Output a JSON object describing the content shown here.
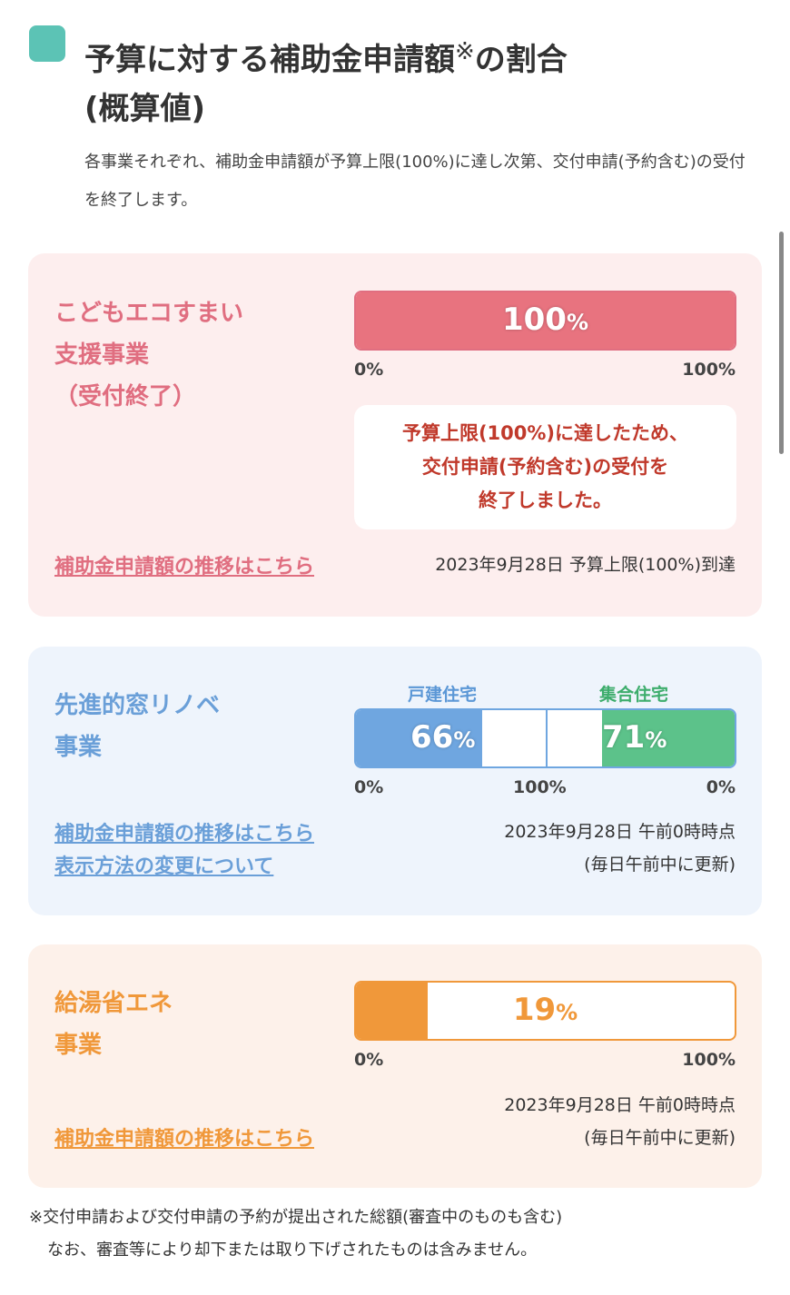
{
  "heading": {
    "title_line1": "予算に対する補助金申請額",
    "title_mark": "※",
    "title_line1_suffix": "の割合",
    "title_line2": "(概算値)",
    "intro": "各事業それぞれ、補助金申請額が予算上限(100%)に達し次第、交付申請(予約含む)の受付を終了します。"
  },
  "kodomo": {
    "name_line1": "こどもエコすまい",
    "name_line2": "支援事業",
    "name_line3": "（受付終了）",
    "progress_percent": 100,
    "bar_value": "100",
    "bar_unit": "%",
    "scale_min": "0%",
    "scale_max": "100%",
    "notice_line1": "予算上限(100%)に達したため、",
    "notice_line2": "交付申請(予約含む)の受付を",
    "notice_line3": "終了しました。",
    "link": "補助金申請額の推移はこちら",
    "status": "2023年9月28日 予算上限(100%)到達",
    "color": "#e8737f"
  },
  "mado": {
    "name_line1": "先進的窓リノベ",
    "name_line2": "事業",
    "left_label": "戸建住宅",
    "right_label": "集合住宅",
    "left_percent": 66,
    "right_percent": 71,
    "left_value": "66",
    "right_value": "71",
    "unit": "%",
    "scale_left": "0%",
    "scale_mid": "100%",
    "scale_right": "0%",
    "link1": "補助金申請額の推移はこちら",
    "link2": "表示方法の変更について",
    "status_line1": "2023年9月28日 午前0時時点",
    "status_line2": "(毎日午前中に更新)",
    "left_color": "#6fa6e0",
    "right_color": "#5cc28a",
    "label_left_color": "#5b97d6",
    "label_right_color": "#3dad6c"
  },
  "kyuto": {
    "name_line1": "給湯省エネ",
    "name_line2": "事業",
    "progress_percent": 19,
    "bar_value": "19",
    "bar_unit": "%",
    "scale_min": "0%",
    "scale_max": "100%",
    "link": "補助金申請額の推移はこちら",
    "status_line1": "2023年9月28日 午前0時時点",
    "status_line2": "(毎日午前中に更新)",
    "color": "#f0983a"
  },
  "footnote": {
    "line1": "※交付申請および交付申請の予約が提出された総額(審査中のものも含む)",
    "line2": "なお、審査等により却下または取り下げされたものは含みません。"
  }
}
